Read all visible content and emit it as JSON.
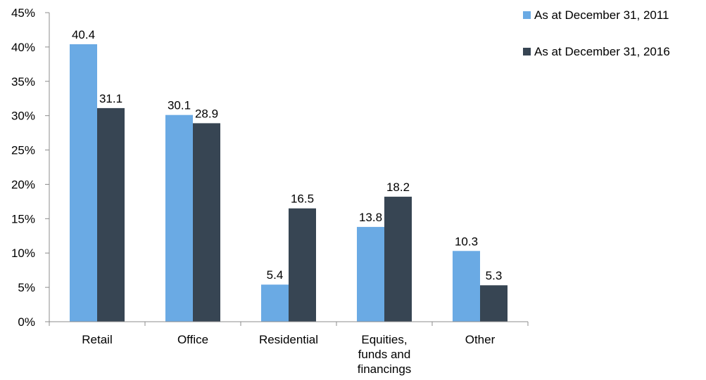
{
  "chart_data": {
    "type": "bar",
    "categories": [
      [
        "Retail"
      ],
      [
        "Office"
      ],
      [
        "Residential"
      ],
      [
        "Equities,",
        "funds and",
        "financings"
      ],
      [
        "Other"
      ]
    ],
    "series": [
      {
        "name": "As at December 31, 2011",
        "color": "#6aaae4",
        "values": [
          40.4,
          30.1,
          5.4,
          13.8,
          10.3
        ],
        "value_labels": [
          "40.4",
          "30.1",
          "5.4",
          "13.8",
          "10.3"
        ]
      },
      {
        "name": "As at December 31, 2016",
        "color": "#374553",
        "values": [
          31.1,
          28.9,
          16.5,
          18.2,
          5.3
        ],
        "value_labels": [
          "31.1",
          "28.9",
          "16.5",
          "18.2",
          "5.3"
        ]
      }
    ],
    "y_ticks": [
      "0%",
      "5%",
      "10%",
      "15%",
      "20%",
      "25%",
      "30%",
      "35%",
      "40%",
      "45%"
    ],
    "ylim": [
      0,
      45
    ],
    "grid": false,
    "legend_position": "top-right"
  }
}
